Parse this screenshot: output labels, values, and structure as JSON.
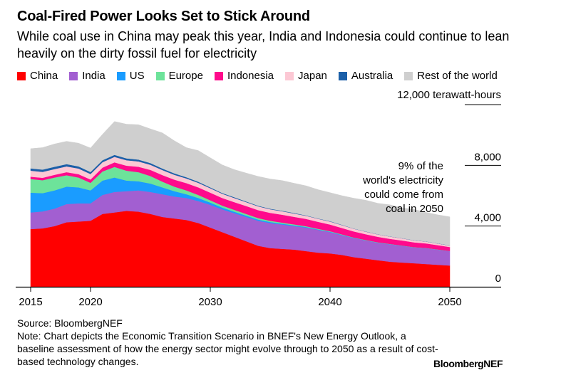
{
  "title": "Coal-Fired Power Looks Set to Stick Around",
  "subtitle": "While coal use in China may peak this year, India and Indonesia could continue to lean heavily on the dirty fossil fuel for electricity",
  "legend": [
    {
      "name": "China",
      "color": "#ff0000"
    },
    {
      "name": "India",
      "color": "#a25fd1"
    },
    {
      "name": "US",
      "color": "#1a9cff"
    },
    {
      "name": "Europe",
      "color": "#6de39a"
    },
    {
      "name": "Indonesia",
      "color": "#ff0a8c"
    },
    {
      "name": "Japan",
      "color": "#fcc8d4"
    },
    {
      "name": "Australia",
      "color": "#1b5fa8"
    },
    {
      "name": "Rest of the world",
      "color": "#cfcfcf"
    }
  ],
  "chart_data": {
    "type": "area",
    "stacked": true,
    "unit_label": "12,000 terawatt-hours",
    "ylim": [
      0,
      12000
    ],
    "xlim": [
      2015,
      2054
    ],
    "x_ticks": [
      "2015",
      "2020",
      "2030",
      "2040",
      "2050"
    ],
    "y_ticks": [
      "0",
      "4,000",
      "8,000"
    ],
    "annotation": "9% of the world's electricity could come from coal in 2050",
    "x": [
      2015,
      2016,
      2017,
      2018,
      2019,
      2020,
      2021,
      2022,
      2023,
      2024,
      2025,
      2026,
      2027,
      2028,
      2029,
      2030,
      2031,
      2032,
      2033,
      2034,
      2035,
      2036,
      2037,
      2038,
      2039,
      2040,
      2041,
      2042,
      2043,
      2044,
      2045,
      2046,
      2047,
      2048,
      2049,
      2050
    ],
    "series": [
      {
        "name": "China",
        "color": "#ff0000",
        "values": [
          3800,
          3850,
          4000,
          4250,
          4300,
          4350,
          4800,
          4900,
          5000,
          4950,
          4800,
          4600,
          4500,
          4400,
          4200,
          3900,
          3600,
          3300,
          3000,
          2700,
          2550,
          2500,
          2450,
          2350,
          2250,
          2200,
          2100,
          1950,
          1850,
          1750,
          1650,
          1600,
          1550,
          1500,
          1450,
          1400
        ]
      },
      {
        "name": "India",
        "color": "#a25fd1",
        "values": [
          1100,
          1120,
          1150,
          1200,
          1200,
          1150,
          1250,
          1350,
          1300,
          1400,
          1450,
          1500,
          1450,
          1450,
          1450,
          1500,
          1500,
          1550,
          1600,
          1650,
          1650,
          1600,
          1550,
          1550,
          1500,
          1400,
          1300,
          1250,
          1200,
          1150,
          1150,
          1100,
          1050,
          1050,
          1000,
          950
        ]
      },
      {
        "name": "US",
        "color": "#1a9cff",
        "values": [
          1300,
          1200,
          1200,
          1150,
          1050,
          850,
          950,
          950,
          700,
          600,
          550,
          450,
          350,
          250,
          200,
          150,
          120,
          100,
          90,
          80,
          70,
          60,
          50,
          40,
          30,
          30,
          20,
          20,
          10,
          10,
          10,
          10,
          0,
          0,
          0,
          0
        ]
      },
      {
        "name": "Europe",
        "color": "#6de39a",
        "values": [
          900,
          850,
          850,
          750,
          650,
          500,
          600,
          700,
          650,
          600,
          500,
          380,
          300,
          250,
          200,
          150,
          130,
          120,
          110,
          100,
          80,
          70,
          60,
          50,
          40,
          30,
          30,
          20,
          20,
          20,
          10,
          10,
          10,
          10,
          10,
          10
        ]
      },
      {
        "name": "Indonesia",
        "color": "#ff0a8c",
        "values": [
          150,
          160,
          180,
          200,
          220,
          220,
          250,
          300,
          330,
          360,
          400,
          430,
          460,
          480,
          500,
          500,
          500,
          510,
          520,
          520,
          520,
          520,
          500,
          480,
          460,
          440,
          420,
          400,
          380,
          360,
          340,
          330,
          320,
          300,
          280,
          260
        ]
      },
      {
        "name": "Japan",
        "color": "#fcc8d4",
        "values": [
          400,
          390,
          380,
          380,
          370,
          360,
          360,
          360,
          360,
          350,
          340,
          330,
          320,
          310,
          300,
          290,
          280,
          270,
          260,
          250,
          240,
          230,
          220,
          210,
          200,
          200,
          190,
          180,
          170,
          160,
          150,
          140,
          130,
          120,
          110,
          100
        ]
      },
      {
        "name": "Australia",
        "color": "#1b5fa8",
        "values": [
          150,
          150,
          150,
          150,
          140,
          130,
          130,
          130,
          120,
          120,
          110,
          100,
          90,
          80,
          70,
          60,
          50,
          50,
          40,
          40,
          30,
          30,
          30,
          20,
          20,
          20,
          20,
          10,
          10,
          10,
          10,
          10,
          10,
          10,
          10,
          10
        ]
      },
      {
        "name": "Rest of the world",
        "color": "#cfcfcf",
        "values": [
          1300,
          1450,
          1500,
          1500,
          1530,
          1580,
          1700,
          2200,
          2250,
          2300,
          2250,
          2350,
          2150,
          1950,
          2050,
          1950,
          1850,
          1820,
          1870,
          1930,
          1960,
          1990,
          1960,
          1950,
          1900,
          1880,
          1920,
          2000,
          2060,
          2040,
          2080,
          2000,
          2030,
          1910,
          1880,
          1880
        ]
      }
    ]
  },
  "footer": {
    "source": "Source: BloombergNEF",
    "note": "Note: Chart depicts the Economic Transition Scenario in BNEF's New Energy Outlook, a baseline assessment of how the energy sector might evolve through to 2050 as a result of cost-based technology changes."
  },
  "brand": "BloombergNEF"
}
